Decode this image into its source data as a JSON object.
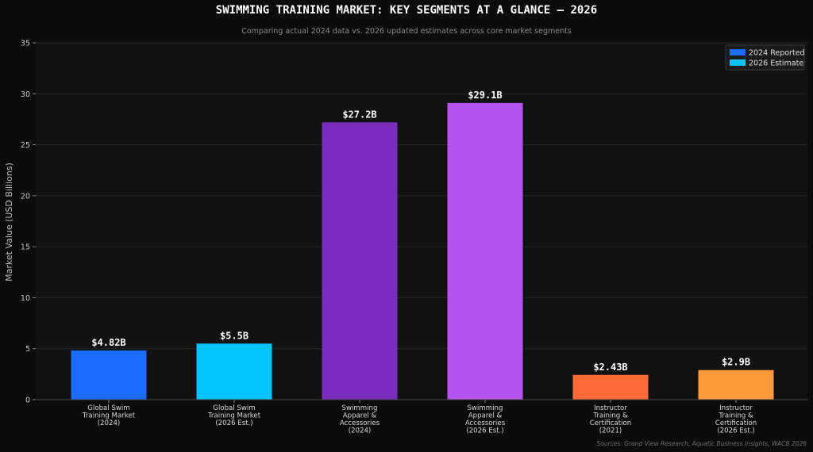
{
  "chart_data": {
    "type": "bar",
    "title": "SWIMMING TRAINING MARKET: KEY SEGMENTS AT A GLANCE — 2026",
    "subtitle": "Comparing actual 2024 data vs. 2026 updated estimates across core market segments",
    "ylabel": "Market Value (USD Billions)",
    "ylim": [
      0,
      35
    ],
    "yticks": [
      0,
      5,
      10,
      15,
      20,
      25,
      30,
      35
    ],
    "grid": true,
    "legend_position": "top-right",
    "legend": [
      {
        "label": "2024 Reported",
        "color": "#1a6cff"
      },
      {
        "label": "2026 Estimate",
        "color": "#00c3ff"
      }
    ],
    "categories": [
      [
        "Global Swim",
        "Training Market",
        "(2024)"
      ],
      [
        "Global Swim",
        "Training Market",
        "(2026 Est.)"
      ],
      [
        "Swimming",
        "Apparel &",
        "Accessories",
        "(2024)"
      ],
      [
        "Swimming",
        "Apparel &",
        "Accessories",
        "(2026 Est.)"
      ],
      [
        "Instructor",
        "Training &",
        "Certification",
        "(2021)"
      ],
      [
        "Instructor",
        "Training &",
        "Certification",
        "(2026 Est.)"
      ]
    ],
    "values": [
      4.82,
      5.5,
      27.2,
      29.1,
      2.43,
      2.9
    ],
    "value_labels": [
      "$4.82B",
      "$5.5B",
      "$27.2B",
      "$29.1B",
      "$2.43B",
      "$2.9B"
    ],
    "colors": [
      "#1a6cff",
      "#00c3ff",
      "#7b2cbf",
      "#b553f0",
      "#ff6b35",
      "#ff9a3c"
    ],
    "source": "Sources: Grand View Research, Aquatic Business Insights, WACB 2026"
  }
}
